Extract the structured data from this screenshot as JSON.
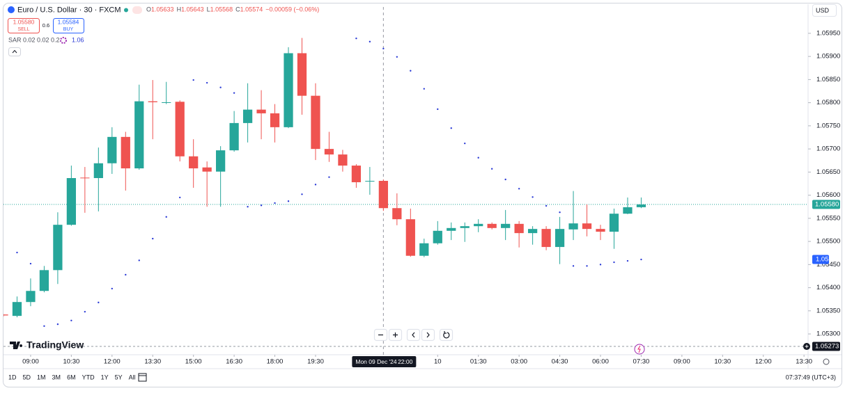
{
  "header": {
    "symbol": "Euro / U.S. Dollar · 30 · FXCM",
    "ohlc": [
      {
        "key": "O",
        "value": "1.05633"
      },
      {
        "key": "H",
        "value": "1.05643"
      },
      {
        "key": "L",
        "value": "1.05568"
      },
      {
        "key": "C",
        "value": "1.05574"
      }
    ],
    "change": "−0.00059 (−0.06%)",
    "sell": {
      "price": "1.05580",
      "label": "SELL"
    },
    "spread": "0.6",
    "buy": {
      "price": "1.05584",
      "label": "BUY"
    },
    "indicator": {
      "name": "SAR 0.02 0.02 0.2",
      "value": "1.06"
    },
    "currency": "USD",
    "brand": "TradingView"
  },
  "chart_data": {
    "type": "candlestick",
    "open": [
      1.05342,
      1.05339,
      1.05369,
      1.05393,
      1.05438,
      1.05536,
      1.05638,
      1.05637,
      1.05669,
      1.05726,
      1.05658,
      1.05803,
      1.058,
      1.05802,
      1.05684,
      1.0566,
      1.05651,
      1.05697,
      1.05756,
      1.05785,
      1.05777,
      1.05747,
      1.05907,
      1.05815,
      1.057,
      1.05688,
      1.05664,
      1.0563,
      1.05631,
      1.05572,
      1.05548,
      1.05469,
      1.05496,
      1.05523,
      1.05529,
      1.05533,
      1.05538,
      1.05529,
      1.05538,
      1.05518,
      1.05527,
      1.05488,
      1.05526,
      1.05539,
      1.05527,
      1.05521,
      1.0556,
      1.05574
    ],
    "high": [
      1.05343,
      1.05381,
      1.0542,
      1.05447,
      1.05563,
      1.05664,
      1.05661,
      1.05703,
      1.05747,
      1.05737,
      1.05839,
      1.05849,
      1.05845,
      1.05805,
      1.05721,
      1.05673,
      1.05706,
      1.05782,
      1.05842,
      1.05827,
      1.05797,
      1.0592,
      1.0594,
      1.05842,
      1.05737,
      1.05698,
      1.05667,
      1.05661,
      1.05634,
      1.05604,
      1.05571,
      1.05506,
      1.05544,
      1.05541,
      1.05541,
      1.05548,
      1.05541,
      1.05568,
      1.05544,
      1.05533,
      1.05533,
      1.05553,
      1.05609,
      1.0558,
      1.05536,
      1.05571,
      1.05595,
      1.05595
    ],
    "low": [
      1.05338,
      1.05336,
      1.0536,
      1.0539,
      1.05408,
      1.05534,
      1.05562,
      1.05565,
      1.05646,
      1.0561,
      1.05655,
      1.05721,
      1.05797,
      1.05673,
      1.05616,
      1.05575,
      1.05575,
      1.05694,
      1.05714,
      1.05721,
      1.05714,
      1.05745,
      1.05774,
      1.05676,
      1.05672,
      1.05651,
      1.05616,
      1.05601,
      1.05566,
      1.05535,
      1.05467,
      1.05466,
      1.05493,
      1.05503,
      1.05499,
      1.0552,
      1.05526,
      1.05503,
      1.05487,
      1.05493,
      1.05481,
      1.05451,
      1.05503,
      1.05511,
      1.05503,
      1.05484,
      1.05559,
      1.05572
    ],
    "close": [
      1.0534,
      1.05369,
      1.05393,
      1.05438,
      1.05536,
      1.05637,
      1.05637,
      1.05669,
      1.05726,
      1.05658,
      1.05803,
      1.05801,
      1.05801,
      1.05684,
      1.05658,
      1.05651,
      1.05697,
      1.05756,
      1.05785,
      1.05777,
      1.05747,
      1.05907,
      1.05815,
      1.057,
      1.05688,
      1.05664,
      1.05628,
      1.05631,
      1.05572,
      1.05548,
      1.05469,
      1.05496,
      1.05523,
      1.05529,
      1.05533,
      1.05538,
      1.05529,
      1.05538,
      1.05518,
      1.05527,
      1.05488,
      1.05527,
      1.05539,
      1.05527,
      1.05521,
      1.0556,
      1.05574,
      1.0558
    ],
    "up_color": "#26a69a",
    "down_color": "#ef5350",
    "sar": {
      "color": "#2b3bd6",
      "values": [
        null,
        1.05476,
        1.05452,
        1.05317,
        1.05321,
        1.05329,
        1.05348,
        1.05368,
        1.05398,
        1.05428,
        1.05459,
        1.05506,
        1.05553,
        1.05595,
        1.05849,
        1.05843,
        1.05833,
        1.05821,
        1.05575,
        1.05578,
        1.05583,
        1.05587,
        1.05602,
        1.05623,
        1.05639,
        null,
        1.05939,
        1.05932,
        1.05917,
        1.05899,
        1.05869,
        1.0583,
        1.05786,
        1.05745,
        1.05712,
        1.05681,
        1.05657,
        1.05634,
        1.05614,
        1.05596,
        1.05577,
        1.05563,
        1.05447,
        1.05447,
        1.0545,
        1.05455,
        1.05458,
        1.05461
      ]
    },
    "ylim": [
      1.05255,
      1.06007
    ],
    "yticks": [
      {
        "value": 1.053,
        "label": "1.05300"
      },
      {
        "value": 1.0535,
        "label": "1.05350"
      },
      {
        "value": 1.054,
        "label": "1.05400"
      },
      {
        "value": 1.0545,
        "label": "1.05450"
      },
      {
        "value": 1.055,
        "label": "1.05500"
      },
      {
        "value": 1.0555,
        "label": "1.05550"
      },
      {
        "value": 1.056,
        "label": "1.05600"
      },
      {
        "value": 1.0565,
        "label": "1.05650"
      },
      {
        "value": 1.057,
        "label": "1.05700"
      },
      {
        "value": 1.0575,
        "label": "1.05750"
      },
      {
        "value": 1.058,
        "label": "1.05800"
      },
      {
        "value": 1.0585,
        "label": "1.05850"
      },
      {
        "value": 1.059,
        "label": "1.05900"
      },
      {
        "value": 1.0595,
        "label": "1.05950"
      }
    ],
    "xlim": [
      0,
      59.3
    ],
    "xticks": [
      {
        "value": 2,
        "label": "09:00"
      },
      {
        "value": 5,
        "label": "10:30"
      },
      {
        "value": 8,
        "label": "12:00"
      },
      {
        "value": 11,
        "label": "13:30"
      },
      {
        "value": 14,
        "label": "15:00"
      },
      {
        "value": 17,
        "label": "16:30"
      },
      {
        "value": 20,
        "label": "18:00"
      },
      {
        "value": 23,
        "label": "19:30"
      },
      {
        "value": 32,
        "label": "10"
      },
      {
        "value": 35,
        "label": "01:30"
      },
      {
        "value": 38,
        "label": "03:00"
      },
      {
        "value": 41,
        "label": "04:30"
      },
      {
        "value": 44,
        "label": "06:00"
      },
      {
        "value": 47,
        "label": "07:30"
      },
      {
        "value": 50,
        "label": "09:00"
      },
      {
        "value": 53,
        "label": "10:30"
      },
      {
        "value": 56,
        "label": "12:00"
      },
      {
        "value": 59,
        "label": "13:30"
      }
    ],
    "last_price": {
      "value": 1.0558,
      "label": "1.05580"
    },
    "sar_price": {
      "value": 1.05461,
      "label": "1.05"
    },
    "alert_price": 1.05273,
    "crosshair": {
      "value": 28,
      "date": "Mon 09 Dec '24",
      "time": "22:00"
    }
  },
  "footer": {
    "ranges": [
      "1D",
      "5D",
      "1M",
      "3M",
      "6M",
      "YTD",
      "1Y",
      "5Y",
      "All"
    ],
    "clock": "07:37:49 (UTC+3)"
  }
}
